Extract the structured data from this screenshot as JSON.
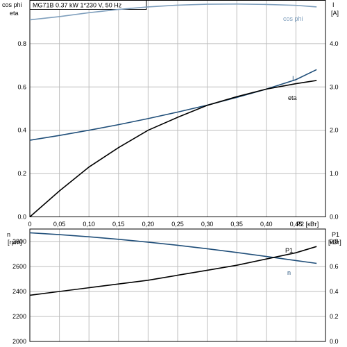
{
  "chart_data": [
    {
      "type": "line",
      "title": "MG71B   0.37 kW   1*230 V, 50 Hz",
      "xlabel": "P2 [кВт]",
      "xlim": [
        0,
        0.5
      ],
      "x_ticks": [
        "0",
        "0,05",
        "0,10",
        "0,15",
        "0,20",
        "0,25",
        "0,30",
        "0,35",
        "0,40",
        "0,45"
      ],
      "y_left_label_top": "cos phi",
      "y_left_label": "eta",
      "ylim_left": [
        0,
        1.0
      ],
      "y_left_ticks": [
        "0.0",
        "0.2",
        "0.4",
        "0.6",
        "0.8"
      ],
      "y_right_label_top": "I",
      "y_right_label": "[A]",
      "ylim_right": [
        0,
        5.0
      ],
      "y_right_ticks": [
        "0.0",
        "1.0",
        "2.0",
        "3.0",
        "4.0"
      ],
      "grid": true,
      "series": [
        {
          "name": "cos phi",
          "axis": "left",
          "color": "#7f9fbd",
          "x": [
            0,
            0.05,
            0.1,
            0.15,
            0.2,
            0.25,
            0.3,
            0.35,
            0.4,
            0.45,
            0.485
          ],
          "y": [
            0.91,
            0.925,
            0.943,
            0.958,
            0.97,
            0.978,
            0.982,
            0.983,
            0.981,
            0.977,
            0.97
          ]
        },
        {
          "name": "I",
          "axis": "right",
          "color": "#1f4e79",
          "x": [
            0,
            0.05,
            0.1,
            0.15,
            0.2,
            0.25,
            0.3,
            0.35,
            0.4,
            0.45,
            0.485
          ],
          "y": [
            1.77,
            1.88,
            2.0,
            2.13,
            2.27,
            2.42,
            2.58,
            2.76,
            2.95,
            3.17,
            3.4
          ]
        },
        {
          "name": "eta",
          "axis": "left",
          "color": "#000000",
          "x": [
            0,
            0.05,
            0.1,
            0.15,
            0.2,
            0.25,
            0.3,
            0.35,
            0.4,
            0.45,
            0.485
          ],
          "y": [
            0.0,
            0.12,
            0.23,
            0.32,
            0.4,
            0.46,
            0.515,
            0.555,
            0.59,
            0.615,
            0.63
          ]
        }
      ]
    },
    {
      "type": "line",
      "xlim": [
        0,
        0.5
      ],
      "y_left_label_top": "n",
      "y_left_label": "[rpm]",
      "ylim_left": [
        2000,
        2900
      ],
      "y_left_ticks": [
        "2000",
        "2200",
        "2400",
        "2600",
        "2800"
      ],
      "y_right_label_top": "P1",
      "y_right_label": "[кВт]",
      "ylim_right": [
        0.0,
        0.9
      ],
      "y_right_ticks": [
        "0.0",
        "0.2",
        "0.4",
        "0.6",
        "0.8"
      ],
      "grid": true,
      "series": [
        {
          "name": "n",
          "axis": "left",
          "color": "#1f4e79",
          "x": [
            0,
            0.05,
            0.1,
            0.15,
            0.2,
            0.25,
            0.3,
            0.35,
            0.4,
            0.45,
            0.485
          ],
          "y": [
            2870,
            2855,
            2838,
            2818,
            2795,
            2770,
            2742,
            2712,
            2680,
            2648,
            2625
          ]
        },
        {
          "name": "P1",
          "axis": "right",
          "color": "#000000",
          "x": [
            0,
            0.05,
            0.1,
            0.15,
            0.2,
            0.25,
            0.3,
            0.35,
            0.4,
            0.45,
            0.485
          ],
          "y": [
            0.37,
            0.4,
            0.43,
            0.46,
            0.49,
            0.53,
            0.57,
            0.61,
            0.66,
            0.71,
            0.76
          ]
        }
      ]
    }
  ]
}
